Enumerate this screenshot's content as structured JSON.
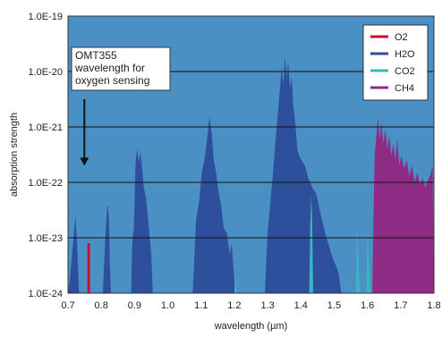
{
  "chart_data": {
    "type": "area",
    "xlabel": "wavelength (µm)",
    "ylabel": "absorption strength",
    "xlim": [
      0.7,
      1.8
    ],
    "ylim": [
      1e-24,
      1e-19
    ],
    "y_scale": "log",
    "grid": "horizontal",
    "background": "#4a90c4",
    "x_ticks": [
      "0.7",
      "0.8",
      "0.9",
      "1.0",
      "1.1",
      "1.2",
      "1.3",
      "1.4",
      "1.5",
      "1.6",
      "1.7",
      "1.8"
    ],
    "y_ticks": [
      "1.0E-24",
      "1.0E-23",
      "1.0E-22",
      "1.0E-21",
      "1.0E-20",
      "1.0E-19"
    ],
    "legend_position": "top-right",
    "annotation": {
      "lines": [
        "OMT355",
        "wavelength for",
        "oxygen sensing"
      ],
      "arrow_target": [
        0.76,
        2e-22
      ]
    },
    "series": [
      {
        "name": "H2O",
        "color": "#2e4f9c",
        "style": "fill",
        "points": [
          [
            0.7,
            1e-24
          ],
          [
            0.705,
            1.6e-24
          ],
          [
            0.715,
            8e-24
          ],
          [
            0.722,
            2.5e-23
          ],
          [
            0.727,
            9e-24
          ],
          [
            0.733,
            1e-24
          ],
          [
            0.805,
            1e-24
          ],
          [
            0.808,
            3e-24
          ],
          [
            0.813,
            1.2e-23
          ],
          [
            0.818,
            4e-23
          ],
          [
            0.823,
            2.5e-23
          ],
          [
            0.826,
            3e-24
          ],
          [
            0.829,
            1e-24
          ],
          [
            0.89,
            1e-24
          ],
          [
            0.893,
            8e-24
          ],
          [
            0.898,
            1.5e-23
          ],
          [
            0.903,
            2.3e-22
          ],
          [
            0.908,
            4e-22
          ],
          [
            0.913,
            2.3e-22
          ],
          [
            0.918,
            3.5e-22
          ],
          [
            0.923,
            1.8e-22
          ],
          [
            0.928,
            8e-23
          ],
          [
            0.935,
            5e-23
          ],
          [
            0.942,
            1.8e-23
          ],
          [
            0.95,
            5e-24
          ],
          [
            0.955,
            1e-24
          ],
          [
            1.075,
            1e-24
          ],
          [
            1.08,
            5e-24
          ],
          [
            1.085,
            2e-23
          ],
          [
            1.095,
            5e-23
          ],
          [
            1.102,
            1.5e-22
          ],
          [
            1.11,
            2.5e-22
          ],
          [
            1.118,
            6e-22
          ],
          [
            1.125,
            1.5e-21
          ],
          [
            1.132,
            8e-22
          ],
          [
            1.138,
            2.5e-22
          ],
          [
            1.145,
            1.5e-22
          ],
          [
            1.152,
            7e-23
          ],
          [
            1.16,
            4e-23
          ],
          [
            1.168,
            1.5e-23
          ],
          [
            1.178,
            1.2e-23
          ],
          [
            1.186,
            5e-24
          ],
          [
            1.192,
            8e-24
          ],
          [
            1.198,
            2.5e-24
          ],
          [
            1.204,
            1e-24
          ],
          [
            1.292,
            1e-24
          ],
          [
            1.296,
            4e-24
          ],
          [
            1.3,
            1.2e-23
          ],
          [
            1.306,
            3e-23
          ],
          [
            1.312,
            8e-23
          ],
          [
            1.318,
            2e-22
          ],
          [
            1.324,
            6e-22
          ],
          [
            1.33,
            1.5e-21
          ],
          [
            1.336,
            4e-21
          ],
          [
            1.342,
            1.2e-20
          ],
          [
            1.347,
            6e-21
          ],
          [
            1.352,
            1.8e-20
          ],
          [
            1.357,
            8e-21
          ],
          [
            1.362,
            1.5e-20
          ],
          [
            1.367,
            5e-21
          ],
          [
            1.372,
            8e-21
          ],
          [
            1.377,
            2.5e-21
          ],
          [
            1.383,
            1.2e-21
          ],
          [
            1.389,
            4e-22
          ],
          [
            1.395,
            3e-22
          ],
          [
            1.402,
            2.5e-22
          ],
          [
            1.412,
            2e-22
          ],
          [
            1.422,
            1.2e-22
          ],
          [
            1.435,
            8e-23
          ],
          [
            1.447,
            6e-23
          ],
          [
            1.46,
            2.5e-23
          ],
          [
            1.472,
            1.3e-23
          ],
          [
            1.482,
            8e-24
          ],
          [
            1.492,
            5e-24
          ],
          [
            1.502,
            3.5e-24
          ],
          [
            1.512,
            2.5e-24
          ],
          [
            1.522,
            1e-24
          ]
        ]
      },
      {
        "name": "CO2",
        "color": "#39b5c3",
        "style": "fill",
        "points": [
          [
            1.2,
            1e-24
          ],
          [
            1.203,
            2.5e-24
          ],
          [
            1.207,
            1e-24
          ],
          [
            1.425,
            1e-24
          ],
          [
            1.428,
            1.5e-23
          ],
          [
            1.431,
            6e-23
          ],
          [
            1.434,
            2e-23
          ],
          [
            1.437,
            1e-24
          ],
          [
            1.565,
            1e-24
          ],
          [
            1.569,
            1.5e-23
          ],
          [
            1.574,
            3e-24
          ],
          [
            1.578,
            1e-24
          ],
          [
            1.597,
            1e-24
          ],
          [
            1.6,
            1.5e-23
          ],
          [
            1.605,
            3e-24
          ],
          [
            1.61,
            1e-24
          ]
        ]
      },
      {
        "name": "CH4",
        "color": "#8e2b84",
        "style": "fill",
        "points": [
          [
            1.615,
            1e-24
          ],
          [
            1.618,
            2e-23
          ],
          [
            1.622,
            3e-22
          ],
          [
            1.627,
            7e-22
          ],
          [
            1.632,
            1.5e-21
          ],
          [
            1.637,
            6e-22
          ],
          [
            1.642,
            1.2e-21
          ],
          [
            1.648,
            5e-22
          ],
          [
            1.654,
            9e-22
          ],
          [
            1.66,
            4e-22
          ],
          [
            1.666,
            7e-22
          ],
          [
            1.672,
            3e-22
          ],
          [
            1.678,
            5e-22
          ],
          [
            1.684,
            2.5e-22
          ],
          [
            1.69,
            6e-22
          ],
          [
            1.696,
            2e-22
          ],
          [
            1.702,
            3e-22
          ],
          [
            1.71,
            1.8e-22
          ],
          [
            1.718,
            2.5e-22
          ],
          [
            1.726,
            1.3e-22
          ],
          [
            1.734,
            2e-22
          ],
          [
            1.742,
            1e-22
          ],
          [
            1.75,
            1.5e-22
          ],
          [
            1.758,
            9e-23
          ],
          [
            1.766,
            1.2e-22
          ],
          [
            1.774,
            8e-23
          ],
          [
            1.782,
            1.1e-22
          ],
          [
            1.79,
            1.4e-22
          ],
          [
            1.796,
            2e-22
          ],
          [
            1.8,
            1e-24
          ]
        ]
      },
      {
        "name": "O2",
        "color": "#c8102e",
        "style": "line",
        "points": [
          [
            0.762,
            1e-24
          ],
          [
            0.762,
            8e-24
          ]
        ]
      }
    ]
  }
}
